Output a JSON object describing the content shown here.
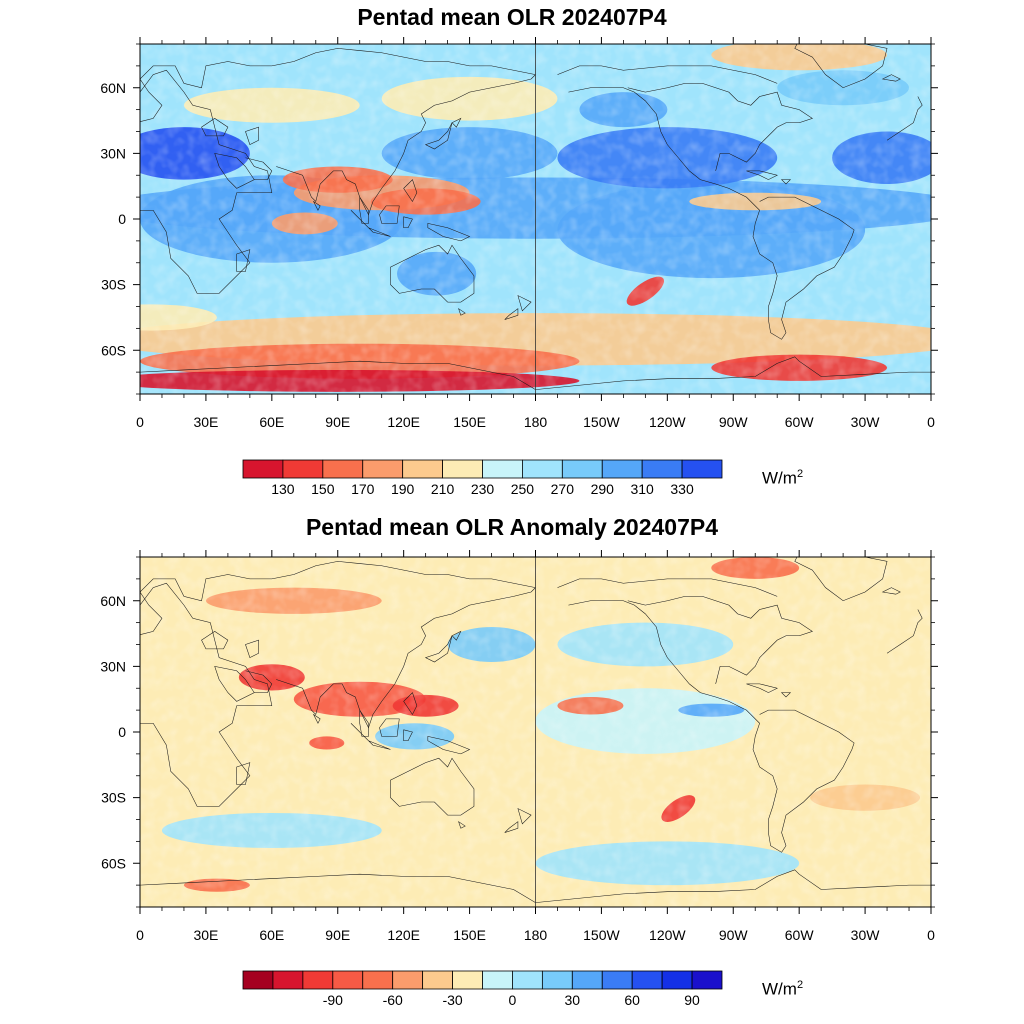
{
  "panels": [
    {
      "title": "Pentad mean OLR 202407P4",
      "colorbar": {
        "colors": [
          "#d7152e",
          "#f03a35",
          "#f8704d",
          "#fb9c6c",
          "#fcca8e",
          "#fdecb5",
          "#c8f4f9",
          "#a0e4fc",
          "#78cbfa",
          "#55a7f8",
          "#3a7cf5",
          "#2551f1"
        ],
        "labels": [
          "130",
          "150",
          "170",
          "190",
          "210",
          "230",
          "250",
          "270",
          "290",
          "310",
          "330"
        ],
        "unit_base": "W/m",
        "unit_exp": "2"
      }
    },
    {
      "title": "Pentad mean OLR Anomaly 202407P4",
      "colorbar": {
        "colors": [
          "#a50020",
          "#d7152e",
          "#f03a35",
          "#f75a45",
          "#f8704d",
          "#fb9c6c",
          "#fcca8e",
          "#fdecb5",
          "#c8f4f9",
          "#a0e4fc",
          "#78cbfa",
          "#55a7f8",
          "#3a7cf5",
          "#2551f1",
          "#1430e6",
          "#1a10cc"
        ],
        "labels": [
          "-90",
          "-60",
          "-30",
          "0",
          "30",
          "60",
          "90"
        ],
        "label_every": 2,
        "label_offset": 2,
        "unit_base": "W/m",
        "unit_exp": "2"
      }
    }
  ],
  "axes": {
    "x_ticks": [
      "0",
      "30E",
      "60E",
      "90E",
      "120E",
      "150E",
      "180",
      "150W",
      "120W",
      "90W",
      "60W",
      "30W",
      "0"
    ],
    "y_ticks": [
      "60N",
      "30N",
      "0",
      "30S",
      "60S"
    ]
  },
  "colors": {
    "coast": "#1a1a1a",
    "frame": "#000000",
    "ocean_base": "#c8f4f9"
  }
}
